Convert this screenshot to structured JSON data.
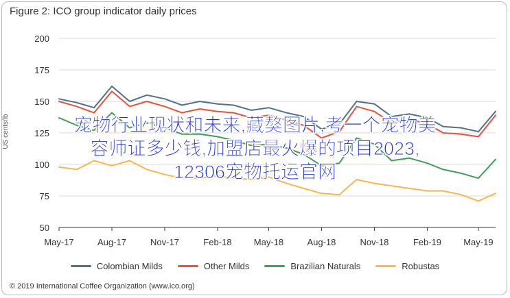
{
  "title": "Figure 2: ICO group indicator daily prices",
  "copyright": "© 2019 International Coffee Organization (www.ico.org)",
  "overlay": {
    "line1": "宠物行业现状和未来,藏獒图片,考一个宠物美",
    "line2": "容师证多少钱,加盟店最火爆的项目2023,",
    "line3": "12306宠物托运官网"
  },
  "colors": {
    "colombian": "#4e7287",
    "other": "#e8523a",
    "brazilian": "#3f9e57",
    "robustas": "#f5b94a",
    "grid": "#d9d9d9",
    "axis": "#333333",
    "overlay_text": "#1e2ee6"
  },
  "chart_data": {
    "type": "line",
    "title": "Figure 2: ICO group indicator daily prices",
    "ylabel": "US cents/lb",
    "xlabel": "",
    "ylim": [
      50,
      200
    ],
    "yticks": [
      50,
      75,
      100,
      125,
      150,
      175,
      200
    ],
    "xlim": [
      "2017-05-01",
      "2019-05-31"
    ],
    "xticks": [
      "2017-05-01",
      "2017-08-01",
      "2017-11-01",
      "2018-02-01",
      "2018-05-01",
      "2018-08-01",
      "2018-11-01",
      "2019-02-01",
      "2019-05-01"
    ],
    "xtick_labels": [
      "May-17",
      "Aug-17",
      "Nov-17",
      "Feb-18",
      "May-18",
      "Aug-18",
      "Nov-18",
      "Feb-19",
      "May-19"
    ],
    "grid": "horizontal",
    "legend_position": "bottom",
    "x": [
      "2017-05-01",
      "2017-06-01",
      "2017-07-01",
      "2017-08-01",
      "2017-09-01",
      "2017-10-01",
      "2017-11-01",
      "2017-12-01",
      "2018-01-01",
      "2018-02-01",
      "2018-03-01",
      "2018-04-01",
      "2018-05-01",
      "2018-06-01",
      "2018-07-01",
      "2018-08-01",
      "2018-09-01",
      "2018-10-01",
      "2018-11-01",
      "2018-12-01",
      "2019-01-01",
      "2019-02-01",
      "2019-03-01",
      "2019-04-01",
      "2019-05-01",
      "2019-05-31"
    ],
    "series": [
      {
        "name": "Colombian Milds",
        "color_key": "colombian",
        "values": [
          152,
          149,
          145,
          162,
          150,
          155,
          152,
          147,
          150,
          148,
          147,
          143,
          145,
          141,
          138,
          128,
          132,
          150,
          148,
          138,
          140,
          137,
          130,
          129,
          126,
          142
        ]
      },
      {
        "name": "Other Milds",
        "color_key": "other",
        "values": [
          150,
          146,
          141,
          158,
          146,
          150,
          146,
          141,
          144,
          142,
          141,
          137,
          139,
          135,
          131,
          121,
          126,
          146,
          142,
          133,
          136,
          132,
          125,
          124,
          122,
          139
        ]
      },
      {
        "name": "Brazilian Naturals",
        "color_key": "brazilian",
        "values": [
          137,
          131,
          127,
          141,
          129,
          133,
          129,
          124,
          124,
          122,
          119,
          115,
          116,
          113,
          108,
          99,
          101,
          121,
          116,
          103,
          105,
          101,
          96,
          93,
          89,
          104
        ]
      },
      {
        "name": "Robustas",
        "color_key": "robustas",
        "values": [
          98,
          96,
          103,
          99,
          103,
          96,
          92,
          89,
          89,
          91,
          89,
          88,
          90,
          85,
          81,
          77,
          76,
          88,
          85,
          83,
          81,
          79,
          79,
          76,
          71,
          77
        ]
      }
    ]
  }
}
